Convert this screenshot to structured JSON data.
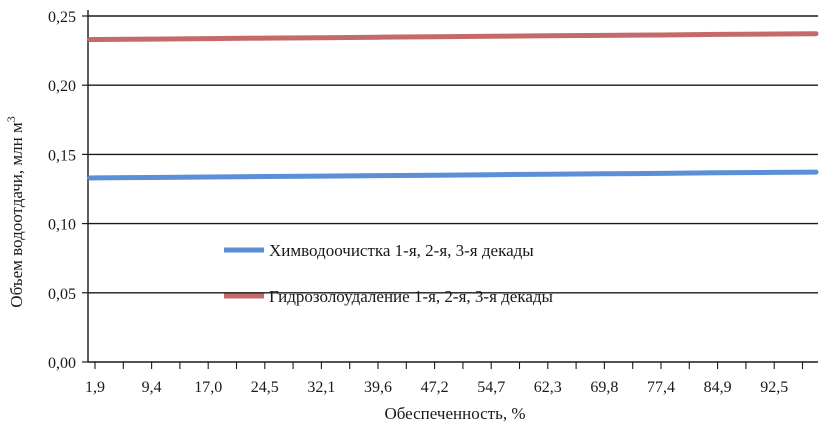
{
  "chart_data": {
    "type": "line",
    "xlabel": "Обеспеченность, %",
    "ylabel": "Объем водоотдачи, млн м",
    "ylabel_superscript": "3",
    "categories": [
      "1,9",
      "9,4",
      "17,0",
      "24,5",
      "32,1",
      "39,6",
      "47,2",
      "54,7",
      "62,3",
      "69,8",
      "77,4",
      "84,9",
      "92,5"
    ],
    "y_ticks": [
      "0,00",
      "0,05",
      "0,10",
      "0,15",
      "0,20",
      "0,25"
    ],
    "ylim": [
      0,
      0.25
    ],
    "grid": "horizontal",
    "legend_position": "center-left",
    "series": [
      {
        "name": "Химводоочистка 1-я, 2-я, 3-я декады",
        "color": "#5b8fd6",
        "values": [
          0.133,
          0.1333,
          0.1337,
          0.134,
          0.1343,
          0.1347,
          0.135,
          0.1353,
          0.1357,
          0.136,
          0.1363,
          0.1367,
          0.137
        ]
      },
      {
        "name": "Гидрозолоудаление 1-я, 2-я, 3-я декады",
        "color": "#c46a6a",
        "values": [
          0.233,
          0.2333,
          0.2337,
          0.234,
          0.2343,
          0.2347,
          0.235,
          0.2353,
          0.2357,
          0.236,
          0.2363,
          0.2367,
          0.237
        ]
      }
    ]
  }
}
